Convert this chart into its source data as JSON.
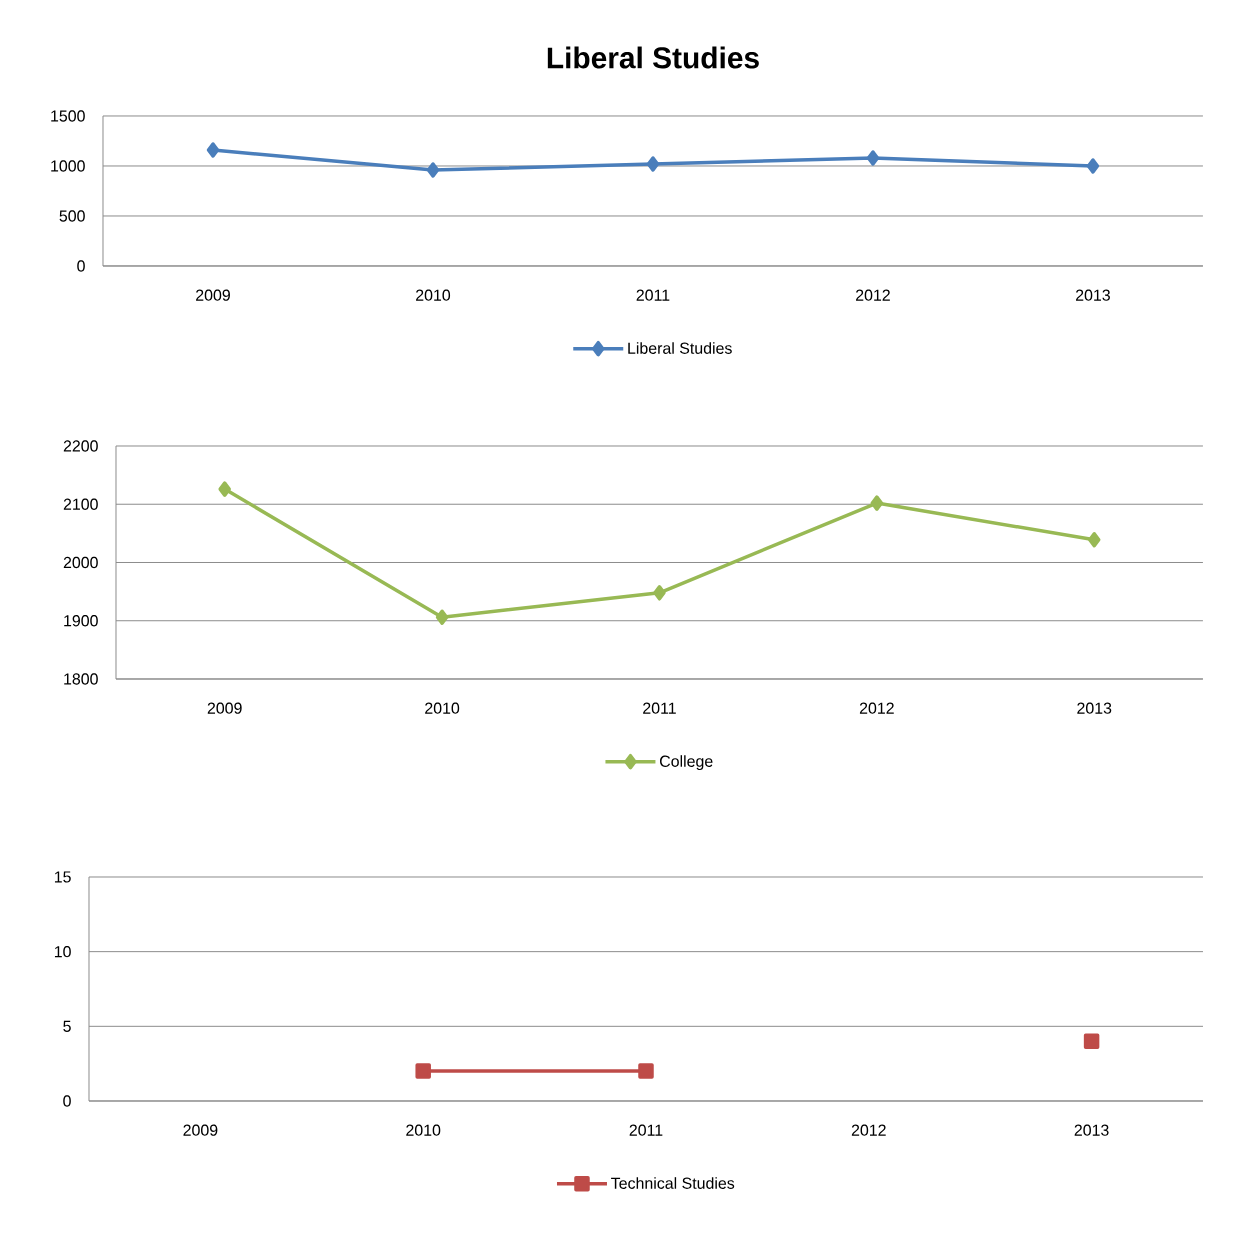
{
  "chart_data": [
    {
      "type": "line",
      "title": "Liberal Studies",
      "categories": [
        "2009",
        "2010",
        "2011",
        "2012",
        "2013"
      ],
      "series": [
        {
          "name": "Liberal Studies",
          "color": "#4a7ebb",
          "values": [
            1160,
            960,
            1020,
            1080,
            1000
          ]
        }
      ],
      "ylim": [
        0,
        1500
      ],
      "yticks": [
        0,
        500,
        1000,
        1500
      ],
      "grid": "y",
      "legend": "bottom",
      "marker": "diamond"
    },
    {
      "type": "line",
      "categories": [
        "2009",
        "2010",
        "2011",
        "2012",
        "2013"
      ],
      "series": [
        {
          "name": "College",
          "color": "#98b954",
          "values": [
            2126,
            1906,
            1948,
            2102,
            2039
          ]
        }
      ],
      "ylim": [
        1800,
        2200
      ],
      "yticks": [
        1800,
        1900,
        2000,
        2100,
        2200
      ],
      "grid": "y",
      "legend": "bottom",
      "marker": "diamond"
    },
    {
      "type": "line",
      "categories": [
        "2009",
        "2010",
        "2011",
        "2012",
        "2013"
      ],
      "series": [
        {
          "name": "Technical Studies",
          "color": "#be4b48",
          "values": [
            null,
            2,
            2,
            null,
            4
          ]
        }
      ],
      "ylim": [
        0,
        15
      ],
      "yticks": [
        0,
        5,
        10,
        15
      ],
      "grid": "y",
      "legend": "bottom",
      "marker": "square"
    }
  ]
}
